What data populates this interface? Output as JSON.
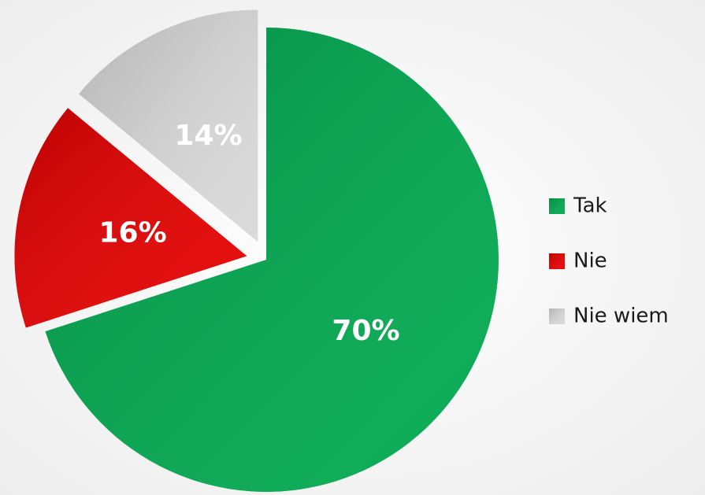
{
  "chart_data": {
    "type": "pie",
    "categories": [
      "Tak",
      "Nie",
      "Nie wiem"
    ],
    "values": [
      70,
      16,
      14
    ],
    "value_labels": [
      "70%",
      "16%",
      "14%"
    ],
    "colors": [
      "#00a94f",
      "#e60000",
      "#d9d9d9"
    ],
    "legend": "right"
  }
}
